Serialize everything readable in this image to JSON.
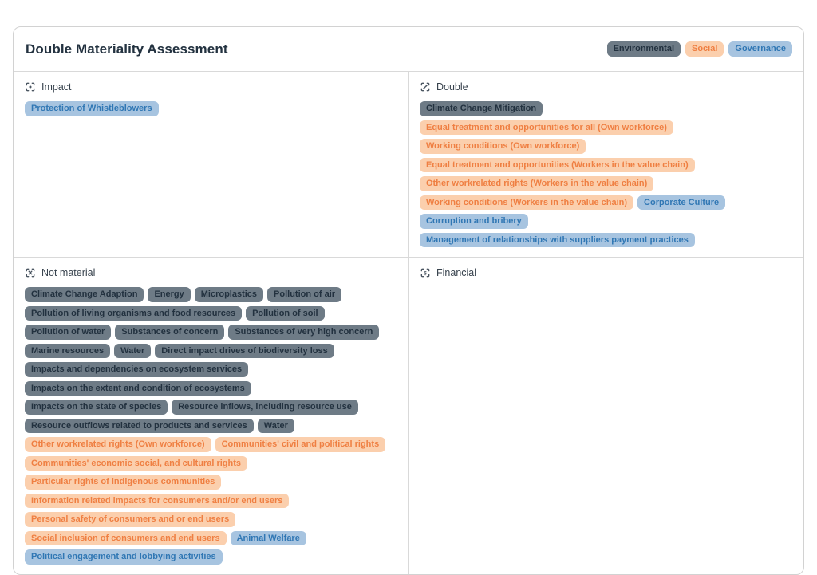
{
  "title": "Double Materiality Assessment",
  "colors": {
    "environmental_bg": "#6e7b86",
    "environmental_text": "#22313f",
    "social_bg": "#fbcfad",
    "social_text": "#ef7f42",
    "governance_bg": "#a7c4e0",
    "governance_text": "#3077b4",
    "divider": "#d9d9d9"
  },
  "legend": [
    {
      "label": "Environmental",
      "category": "environmental"
    },
    {
      "label": "Social",
      "category": "social"
    },
    {
      "label": "Governance",
      "category": "governance"
    }
  ],
  "quadrants": [
    {
      "id": "impact",
      "label": "Impact",
      "icon": "focus-dot-icon",
      "tags": [
        {
          "label": "Protection of Whistleblowers",
          "category": "governance"
        }
      ]
    },
    {
      "id": "double",
      "label": "Double",
      "icon": "focus-link-icon",
      "tags": [
        {
          "label": "Climate Change Mitigation",
          "category": "environmental"
        },
        {
          "label": "Equal treatment and opportunities for all (Own workforce)",
          "category": "social"
        },
        {
          "label": "Working conditions (Own workforce)",
          "category": "social"
        },
        {
          "label": "Equal treatment and opportunities (Workers in the value chain)",
          "category": "social"
        },
        {
          "label": "Other workrelated rights (Workers in the value chain)",
          "category": "social"
        },
        {
          "label": "Working conditions (Workers in the value chain)",
          "category": "social"
        },
        {
          "label": "Corporate Culture",
          "category": "governance"
        },
        {
          "label": "Corruption and bribery",
          "category": "governance"
        },
        {
          "label": "Management of relationships with suppliers payment practices",
          "category": "governance"
        }
      ]
    },
    {
      "id": "not-material",
      "label": "Not material",
      "icon": "focus-x-icon",
      "tags": [
        {
          "label": "Climate Change Adaption",
          "category": "environmental"
        },
        {
          "label": "Energy",
          "category": "environmental"
        },
        {
          "label": "Microplastics",
          "category": "environmental"
        },
        {
          "label": "Pollution of air",
          "category": "environmental"
        },
        {
          "label": "Pollution of living organisms and food resources",
          "category": "environmental"
        },
        {
          "label": "Pollution of soil",
          "category": "environmental"
        },
        {
          "label": "Pollution of water",
          "category": "environmental"
        },
        {
          "label": "Substances of concern",
          "category": "environmental"
        },
        {
          "label": "Substances of very high concern",
          "category": "environmental"
        },
        {
          "label": "Marine resources",
          "category": "environmental"
        },
        {
          "label": "Water",
          "category": "environmental"
        },
        {
          "label": "Direct impact drives of biodiversity loss",
          "category": "environmental"
        },
        {
          "label": "Impacts and dependencies on ecosystem services",
          "category": "environmental"
        },
        {
          "label": "Impacts on the extent and condition of ecosystems",
          "category": "environmental"
        },
        {
          "label": "Impacts on the state of species",
          "category": "environmental"
        },
        {
          "label": "Resource inflows, including resource use",
          "category": "environmental"
        },
        {
          "label": "Resource outflows related to products and services",
          "category": "environmental"
        },
        {
          "label": "Water",
          "category": "environmental"
        },
        {
          "label": "Other workrelated rights (Own workforce)",
          "category": "social"
        },
        {
          "label": "Communities' civil and political rights",
          "category": "social"
        },
        {
          "label": "Communities' economic social, and cultural rights",
          "category": "social"
        },
        {
          "label": "Particular rights of indigenous communities",
          "category": "social"
        },
        {
          "label": "Information related impacts for consumers and/or end users",
          "category": "social"
        },
        {
          "label": "Personal safety of consumers and or end users",
          "category": "social"
        },
        {
          "label": "Social inclusion of consumers and end users",
          "category": "social"
        },
        {
          "label": "Animal Welfare",
          "category": "governance"
        },
        {
          "label": "Political engagement and lobbying activities",
          "category": "governance"
        }
      ]
    },
    {
      "id": "financial",
      "label": "Financial",
      "icon": "focus-dollar-icon",
      "tags": []
    }
  ]
}
